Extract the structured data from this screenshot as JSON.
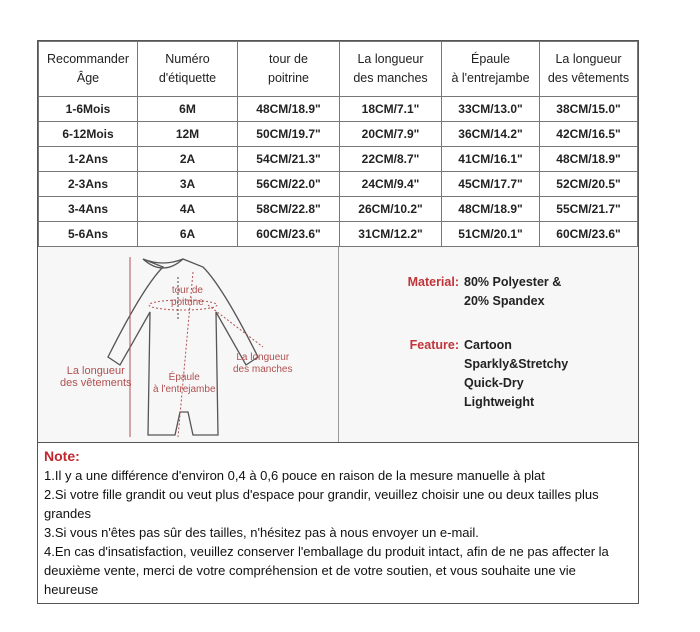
{
  "table": {
    "headers": [
      "Recommander\nÂge",
      "Numéro\nd'étiquette",
      "tour de\npoitrine",
      "La longueur\ndes manches",
      "Épaule\nà l'entrejambe",
      "La longueur\ndes vêtements"
    ],
    "rows": [
      [
        "1-6Mois",
        "6M",
        "48CM/18.9\"",
        "18CM/7.1\"",
        "33CM/13.0\"",
        "38CM/15.0\""
      ],
      [
        "6-12Mois",
        "12M",
        "50CM/19.7\"",
        "20CM/7.9\"",
        "36CM/14.2\"",
        "42CM/16.5\""
      ],
      [
        "1-2Ans",
        "2A",
        "54CM/21.3\"",
        "22CM/8.7\"",
        "41CM/16.1\"",
        "48CM/18.9\""
      ],
      [
        "2-3Ans",
        "3A",
        "56CM/22.0\"",
        "24CM/9.4\"",
        "45CM/17.7\"",
        "52CM/20.5\""
      ],
      [
        "3-4Ans",
        "4A",
        "58CM/22.8\"",
        "26CM/10.2\"",
        "48CM/18.9\"",
        "55CM/21.7\""
      ],
      [
        "5-6Ans",
        "6A",
        "60CM/23.6\"",
        "31CM/12.2\"",
        "51CM/20.1\"",
        "60CM/23.6\""
      ]
    ]
  },
  "diagram": {
    "chest": "tour de\npoitrine",
    "length": "La longueur\ndes vêtements",
    "crotch": "Épaule\nà l'entrejambe",
    "sleeve": "La longueur\ndes manches"
  },
  "info": {
    "material_label": "Material:",
    "material": [
      "80% Polyester &",
      "20% Spandex"
    ],
    "feature_label": "Feature:",
    "features": [
      "Cartoon",
      "Sparkly&Stretchy",
      "Quick-Dry",
      "Lightweight"
    ]
  },
  "note": {
    "title": "Note:",
    "lines": [
      "1.Il y a une différence d'environ 0,4 à 0,6 pouce en raison de la mesure manuelle à plat",
      "2.Si votre fille grandit ou veut plus d'espace pour grandir, veuillez choisir une ou deux tailles plus grandes",
      "3.Si vous n'êtes pas sûr des tailles, n'hésitez pas à nous envoyer un e-mail.",
      "4.En cas d'insatisfaction, veuillez conserver l'emballage du produit intact, afin de ne pas affecter la deuxième vente, merci de votre compréhension et de votre soutien, et vous souhaite une vie heureuse"
    ]
  }
}
